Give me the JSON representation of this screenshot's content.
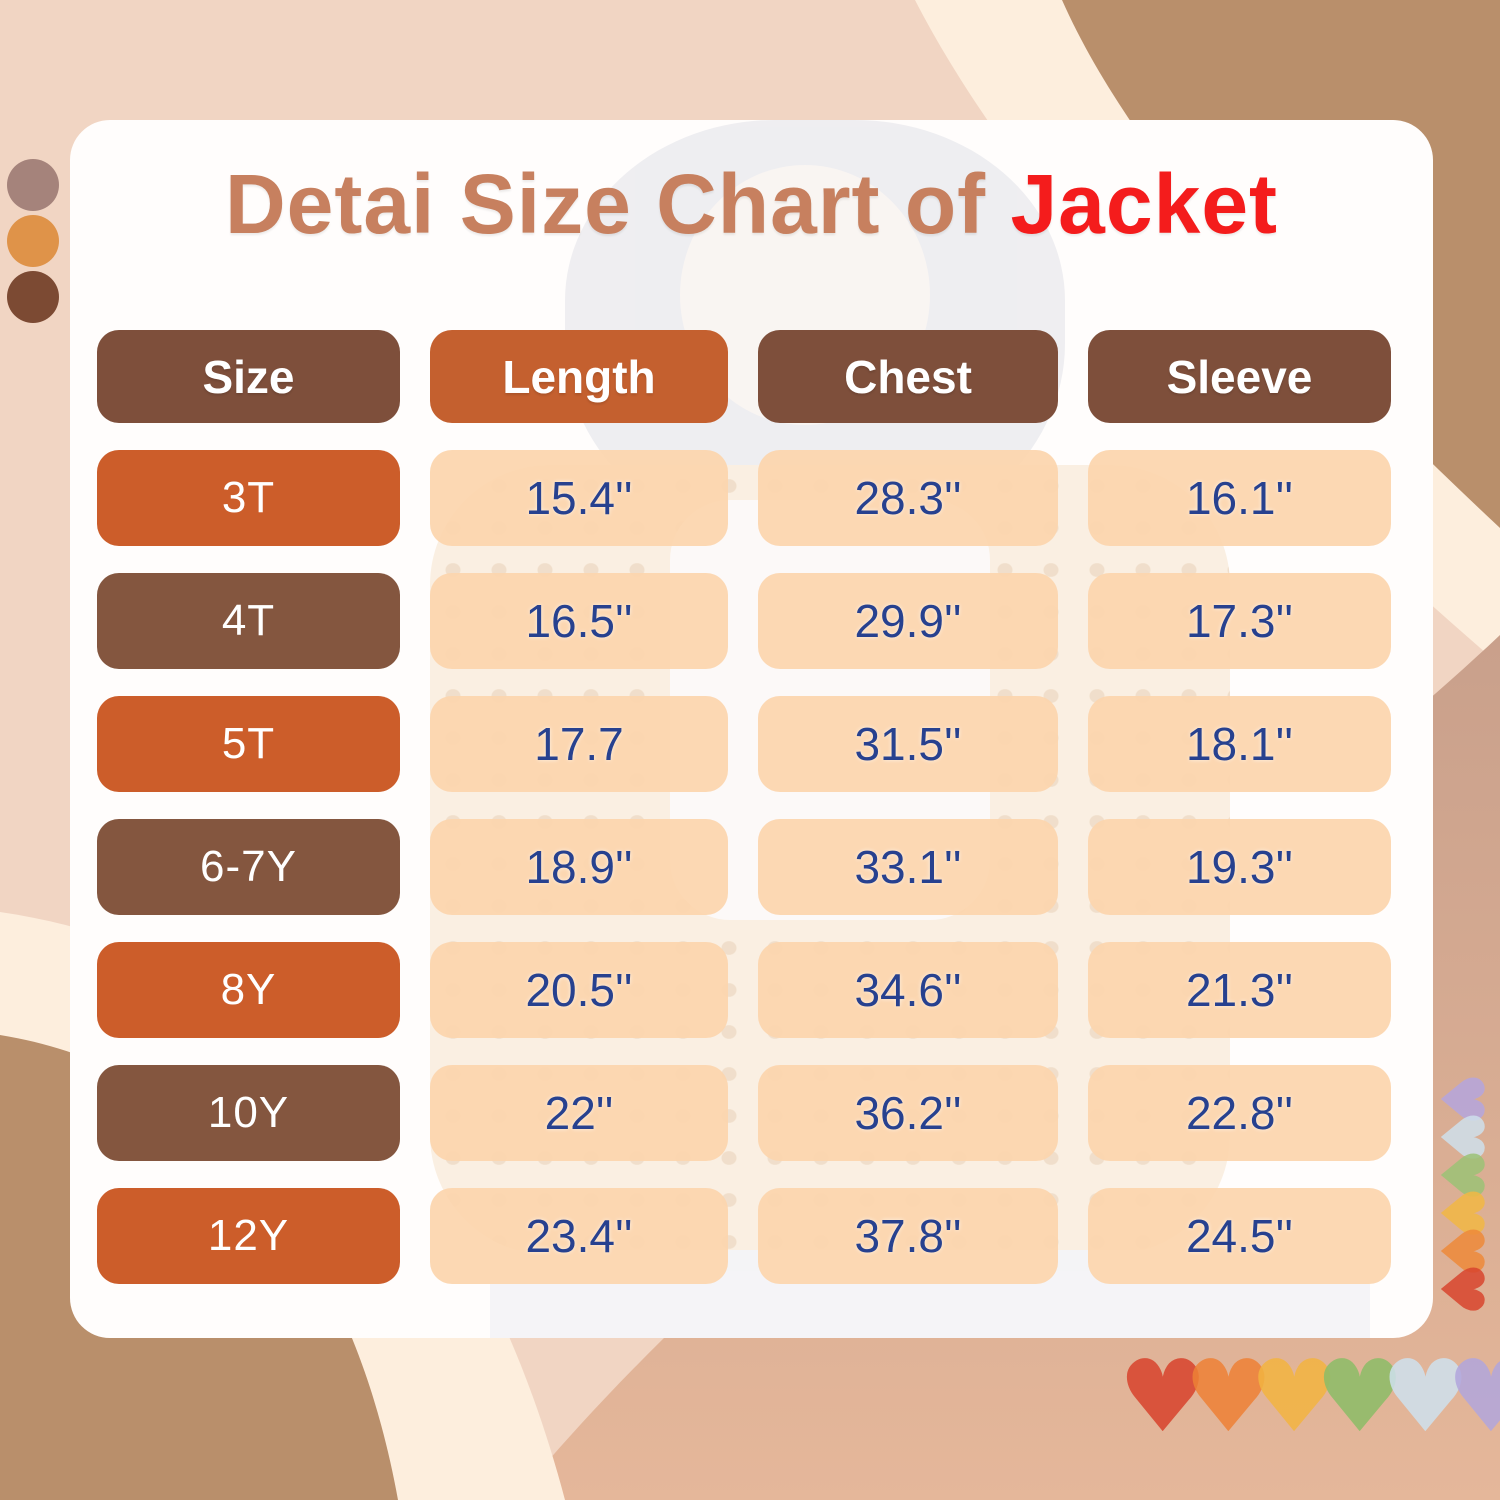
{
  "title": {
    "text": "Detai Size Chart of",
    "highlight": "Jacket"
  },
  "table": {
    "columns": [
      {
        "label": "Size",
        "variant": "brown"
      },
      {
        "label": "Length",
        "variant": "orange"
      },
      {
        "label": "Chest",
        "variant": "brown"
      },
      {
        "label": "Sleeve",
        "variant": "brown"
      }
    ],
    "rows": [
      {
        "size": "3T",
        "variant": "orange",
        "length": "15.4''",
        "chest": "28.3''",
        "sleeve": "16.1''"
      },
      {
        "size": "4T",
        "variant": "brown",
        "length": "16.5''",
        "chest": "29.9''",
        "sleeve": "17.3''"
      },
      {
        "size": "5T",
        "variant": "orange",
        "length": "17.7",
        "chest": "31.5''",
        "sleeve": "18.1''"
      },
      {
        "size": "6-7Y",
        "variant": "brown",
        "length": "18.9''",
        "chest": "33.1''",
        "sleeve": "19.3''"
      },
      {
        "size": "8Y",
        "variant": "orange",
        "length": "20.5''",
        "chest": "34.6''",
        "sleeve": "21.3''"
      },
      {
        "size": "10Y",
        "variant": "brown",
        "length": "22''",
        "chest": "36.2''",
        "sleeve": "22.8''"
      },
      {
        "size": "12Y",
        "variant": "orange",
        "length": "23.4''",
        "chest": "37.8''",
        "sleeve": "24.5''"
      }
    ]
  },
  "chart_data": {
    "type": "table",
    "title": "Detai Size Chart of Jacket",
    "columns": [
      "Size",
      "Length",
      "Chest",
      "Sleeve"
    ],
    "rows": [
      [
        "3T",
        "15.4''",
        "28.3''",
        "16.1''"
      ],
      [
        "4T",
        "16.5''",
        "29.9''",
        "17.3''"
      ],
      [
        "5T",
        "17.7",
        "31.5''",
        "18.1''"
      ],
      [
        "6-7Y",
        "18.9''",
        "33.1''",
        "19.3''"
      ],
      [
        "8Y",
        "20.5''",
        "34.6''",
        "21.3''"
      ],
      [
        "10Y",
        "22''",
        "36.2''",
        "22.8''"
      ],
      [
        "12Y",
        "23.4''",
        "37.8''",
        "24.5''"
      ]
    ]
  },
  "colors": {
    "title_brown": "#c7805f",
    "title_red": "#f41c1c",
    "header_brown": "#7e4f3b",
    "header_orange": "#c4602f",
    "row_orange": "#cc5d2a",
    "row_brown": "#84563f",
    "value_cell": "#fcd5ad",
    "value_text": "#27418f",
    "bg_peach": "#f1d5c3",
    "bg_tan": "#b98f6b",
    "bg_cream": "#fdeedd",
    "bg_rose": "#cfa58c"
  },
  "decorations": {
    "palette_dots": [
      "#a5837b",
      "#df9349",
      "#7c4a33"
    ],
    "hearts_bottom": [
      "#d8432c",
      "#ee8136",
      "#f3b441",
      "#8cbd67",
      "#cfe1ee",
      "#b2a6dd"
    ],
    "hearts_side": [
      "#b5a6de",
      "#cfe0ec",
      "#9cc276",
      "#f2b844",
      "#ee8a3a",
      "#d9452e"
    ],
    "heart_glyph": "♥"
  }
}
